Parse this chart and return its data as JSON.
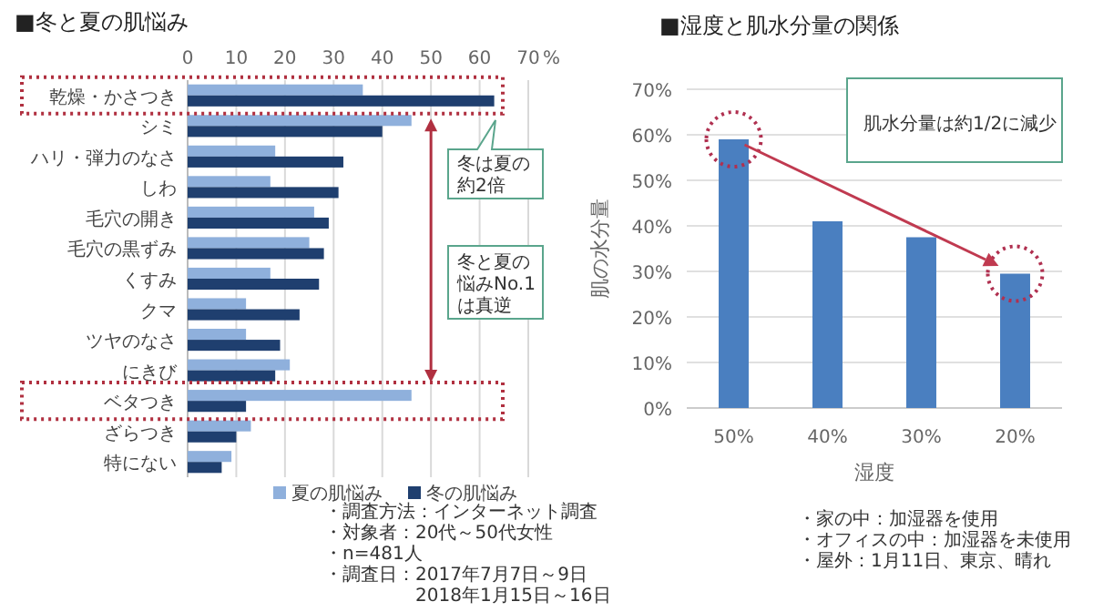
{
  "chart_data": [
    {
      "type": "bar",
      "orientation": "horizontal",
      "title": "■冬と夏の肌悩み",
      "xlabel": "%",
      "categories": [
        "乾燥・かさつき",
        "シミ",
        "ハリ・弾力のなさ",
        "しわ",
        "毛穴の開き",
        "毛穴の黒ずみ",
        "くすみ",
        "クマ",
        "ツヤのなさ",
        "にきび",
        "ベタつき",
        "ざらつき",
        "特にない"
      ],
      "series": [
        {
          "name": "夏の肌悩み",
          "color": "#8fb0dc",
          "values": [
            36,
            46,
            18,
            17,
            26,
            25,
            17,
            12,
            12,
            21,
            46,
            13,
            9
          ]
        },
        {
          "name": "冬の肌悩み",
          "color": "#1f3f6f",
          "values": [
            63,
            40,
            32,
            31,
            29,
            28,
            27,
            23,
            19,
            18,
            12,
            10,
            7
          ]
        }
      ],
      "xlim": [
        0,
        70
      ],
      "xticks": [
        0,
        10,
        20,
        30,
        40,
        50,
        60,
        70
      ],
      "grid": "x",
      "legend": "bottom right",
      "annotations": [
        "冬は夏の",
        "約2倍",
        "冬と夏の",
        "悩みNo.1",
        "は真逆",
        "・調査方法：インターネット調査",
        "・対象者：20代～50代女性",
        "・n=481人",
        "・調査日：2017年7月7日～9日",
        "2018年1月15日～16日"
      ]
    },
    {
      "type": "bar",
      "title": "■湿度と肌水分量の関係",
      "xlabel": "湿度",
      "ylabel": "肌の水分量",
      "categories": [
        "50%",
        "40%",
        "30%",
        "20%"
      ],
      "values": [
        59,
        41,
        37.5,
        29.5
      ],
      "color": "#4a7fc0",
      "ylim": [
        0,
        70
      ],
      "yticks": [
        {
          "value": 0,
          "label": "0%"
        },
        {
          "value": 10,
          "label": "10%"
        },
        {
          "value": 20,
          "label": "20%"
        },
        {
          "value": 30,
          "label": "30%"
        },
        {
          "value": 40,
          "label": "40%"
        },
        {
          "value": 50,
          "label": "50%"
        },
        {
          "value": 60,
          "label": "60%"
        },
        {
          "value": 70,
          "label": "70%"
        }
      ],
      "grid": "y",
      "annotations": [
        "肌水分量は約1/2に減少",
        "・家の中：加湿器を使用",
        "・オフィスの中：加湿器を未使用",
        "・屋外：1月11日、東京、晴れ"
      ]
    }
  ]
}
